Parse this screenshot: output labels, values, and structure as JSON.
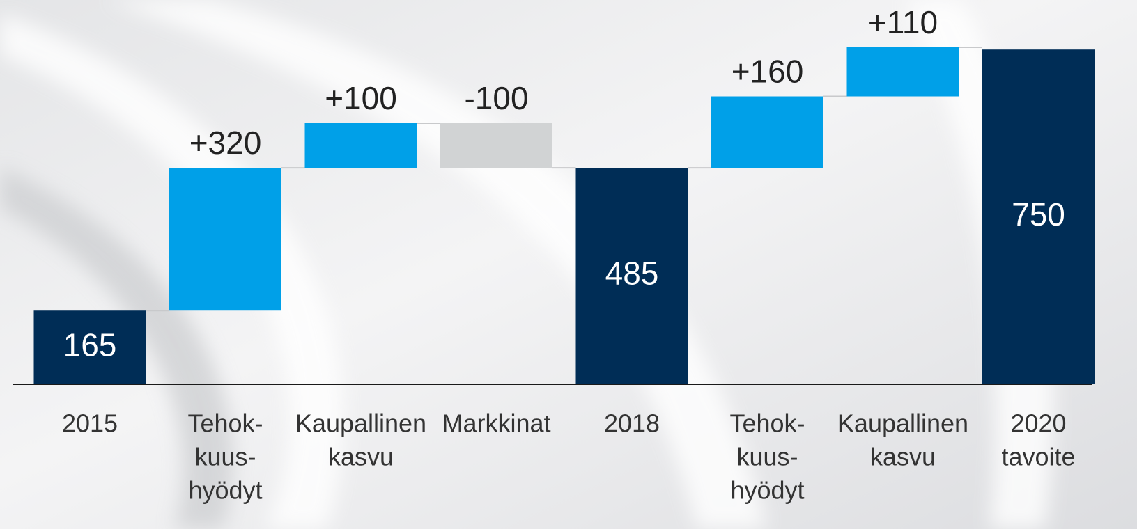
{
  "chart_data": {
    "type": "waterfall",
    "categories": [
      [
        "2015"
      ],
      [
        "Tehok-",
        "kuus-",
        "hyödyt"
      ],
      [
        "Kaupallinen",
        "kasvu"
      ],
      [
        "Markkinat"
      ],
      [
        "2018"
      ],
      [
        "Tehok-",
        "kuus-",
        "hyödyt"
      ],
      [
        "Kaupallinen",
        "kasvu"
      ],
      [
        "2020",
        "tavoite"
      ]
    ],
    "values": [
      165,
      320,
      100,
      -100,
      485,
      160,
      110,
      750
    ],
    "value_labels": [
      "165",
      "+320",
      "+100",
      "-100",
      "485",
      "+160",
      "+110",
      "750"
    ],
    "measure": [
      "absolute",
      "relative",
      "relative",
      "relative",
      "absolute",
      "relative",
      "relative",
      "absolute"
    ],
    "colors": {
      "total": "#002d56",
      "increase": "#00a0e8",
      "decrease": "#d1d3d4"
    }
  }
}
